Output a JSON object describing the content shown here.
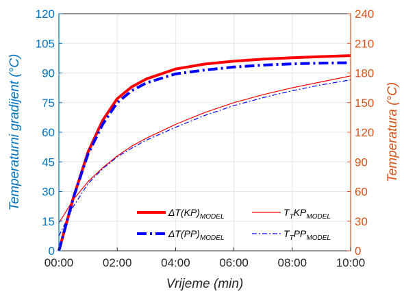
{
  "chart_data": {
    "type": "line",
    "xlabel": "Vrijeme (min)",
    "ylabel_left": "Temperaturni gradijent (°C)",
    "ylabel_right": "Temperatura (°C)",
    "x_ticks": [
      "00:00",
      "02:00",
      "04:00",
      "06:00",
      "08:00",
      "10:00"
    ],
    "x_range_min": [
      0,
      600
    ],
    "ylim_left": [
      0,
      120
    ],
    "ylim_right": [
      0,
      240
    ],
    "yticks_left": [
      0,
      15,
      30,
      45,
      60,
      75,
      90,
      105,
      120
    ],
    "yticks_right": [
      0,
      30,
      60,
      90,
      120,
      150,
      180,
      210,
      240
    ],
    "grid": true,
    "legend_placement": "bottom-right",
    "colors": {
      "left_axis": "#0072BD",
      "right_axis": "#D95319",
      "red": "#FF0000",
      "blue": "#0000FF"
    },
    "series": [
      {
        "name": "ΔT(KP)",
        "name_sub": "MODEL",
        "axis": "left",
        "color": "#FF0000",
        "style": "solid",
        "width": "thick",
        "x": [
          0,
          30,
          60,
          90,
          120,
          150,
          180,
          240,
          300,
          360,
          420,
          480,
          540,
          600
        ],
        "y": [
          0,
          27,
          50,
          66,
          77,
          83,
          87,
          92,
          94.5,
          96,
          97,
          97.7,
          98.3,
          98.8
        ]
      },
      {
        "name": "ΔT(PP)",
        "name_sub": "MODEL",
        "axis": "left",
        "color": "#0000FF",
        "style": "dashdot",
        "width": "thick",
        "x": [
          0,
          30,
          60,
          90,
          120,
          150,
          180,
          240,
          300,
          360,
          420,
          480,
          540,
          600
        ],
        "y": [
          0,
          27,
          49,
          64,
          75,
          81,
          85,
          89.5,
          91.5,
          93,
          94,
          94.6,
          95,
          95.2
        ]
      },
      {
        "name": "T",
        "name_mid": "T",
        "name_tail": "KP",
        "name_sub": "MODEL",
        "axis": "right",
        "color": "#FF0000",
        "style": "solid",
        "width": "thin",
        "x": [
          0,
          30,
          60,
          90,
          120,
          150,
          180,
          240,
          300,
          360,
          420,
          480,
          540,
          600
        ],
        "y": [
          28,
          52,
          70,
          84,
          96,
          106,
          114,
          128,
          140,
          150,
          158,
          165,
          171,
          177
        ]
      },
      {
        "name": "T",
        "name_mid": "T",
        "name_tail": "PP",
        "name_sub": "MODEL",
        "axis": "right",
        "color": "#0000FF",
        "style": "dashdot",
        "width": "thin",
        "x": [
          0,
          30,
          60,
          90,
          120,
          150,
          180,
          240,
          300,
          360,
          420,
          480,
          540,
          600
        ],
        "y": [
          15,
          45,
          68,
          83,
          95,
          104,
          112,
          125,
          137,
          147,
          155,
          162,
          168,
          173
        ]
      }
    ]
  }
}
